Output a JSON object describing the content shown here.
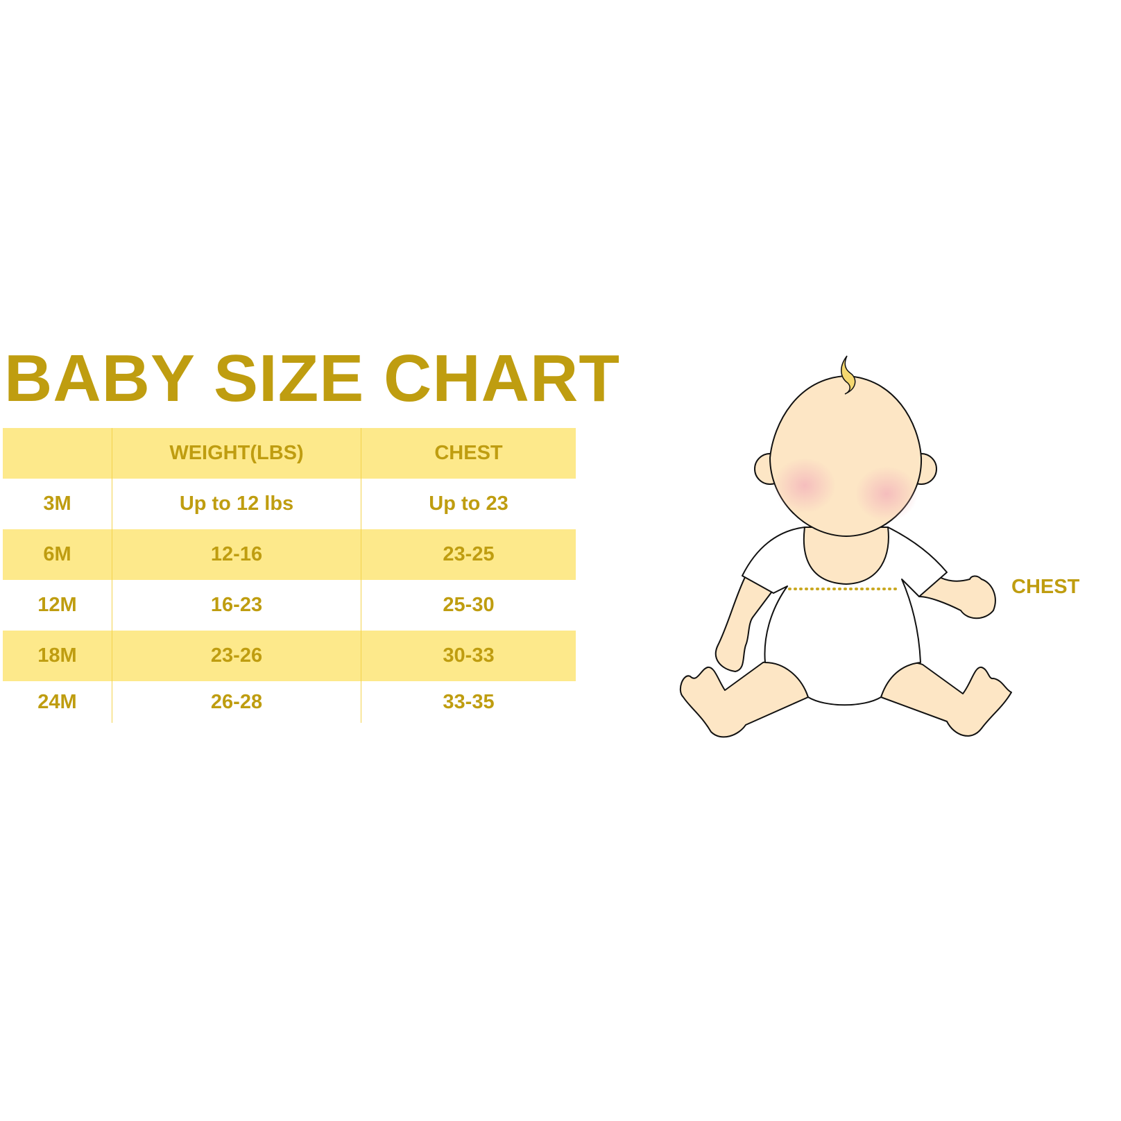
{
  "title": "BABY SIZE CHART",
  "table": {
    "headers": [
      "",
      "WEIGHT(LBS)",
      "CHEST"
    ],
    "rows": [
      [
        "3M",
        "Up to 12 lbs",
        "Up to 23"
      ],
      [
        "6M",
        "12-16",
        "23-25"
      ],
      [
        "12M",
        "16-23",
        "25-30"
      ],
      [
        "18M",
        "23-26",
        "30-33"
      ],
      [
        "24M",
        "26-28",
        "33-35"
      ]
    ]
  },
  "illustration": {
    "measure_label": "CHEST"
  },
  "colors": {
    "text_gold": "#bf9d10",
    "band_yellow": "#fde98b",
    "skin": "#fde6c5",
    "measure_dots": "#c9a820"
  }
}
